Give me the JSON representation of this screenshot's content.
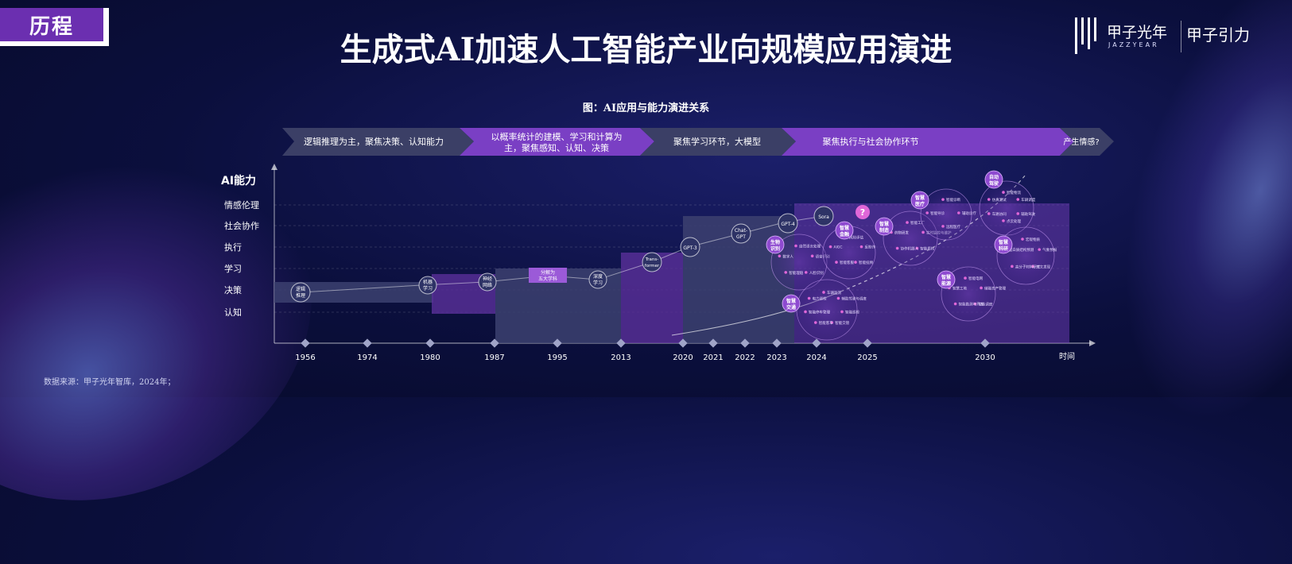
{
  "header": {
    "tag": "历程",
    "title": "生成式AI加速人工智能产业向规模应用演进",
    "logo_cn": "甲子光年",
    "logo_en": "JAZZYEAR",
    "logo_sub": "甲子引力"
  },
  "figure": {
    "caption": "图：AI应用与能力演进关系",
    "y_axis_title": "AI能力",
    "x_axis_title": "时间",
    "source": "数据来源：甲子光年智库，2024年；"
  },
  "phases": [
    {
      "text": "逻辑推理为主，聚焦决策、认知能力"
    },
    {
      "text_line1": "以概率统计的建模、学习和计算为",
      "text_line2": "主，聚焦感知、认知、决策"
    },
    {
      "text": "聚焦学习环节，大模型"
    },
    {
      "text": "聚焦执行与社会协作环节"
    },
    {
      "text": "产生情感?"
    }
  ],
  "ability_levels": [
    "情感伦理",
    "社会协作",
    "执行",
    "学习",
    "决策",
    "认知"
  ],
  "years": [
    "1956",
    "1974",
    "1980",
    "1987",
    "1995",
    "2013",
    "2020",
    "2021",
    "2022",
    "2023",
    "2024",
    "2025",
    "2030"
  ],
  "milestones": [
    {
      "line1": "逻辑",
      "line2": "推理"
    },
    {
      "line1": "机器",
      "line2": "学习"
    },
    {
      "line1": "神经",
      "line2": "网络"
    },
    {
      "line1": "分解为",
      "line2": "五大学科"
    },
    {
      "line1": "深度",
      "line2": "学习"
    },
    {
      "line1": "Trans-",
      "line2": "former"
    },
    {
      "line1": "GPT-3"
    },
    {
      "line1": "Chat-",
      "line2": "GPT"
    },
    {
      "line1": "GPT-4"
    },
    {
      "line1": "Sora"
    },
    {
      "line1": "?"
    }
  ],
  "clusters": [
    {
      "title_line1": "生物",
      "title_line2": "识别",
      "items": [
        "自然语言处理",
        "语音识别",
        "人脸识别",
        "智能理赔",
        "数字人"
      ]
    },
    {
      "title_line1": "智慧",
      "title_line2": "金融",
      "items": [
        "风险评估",
        "反欺诈",
        "智能投顾",
        "智能客服",
        "AIGC"
      ]
    },
    {
      "title_line1": "智慧",
      "title_line2": "制造",
      "items": [
        "智能工厂",
        "实时监控与维护",
        "智能质检",
        "协作机器人",
        "药物研发"
      ]
    },
    {
      "title_line1": "智慧",
      "title_line2": "医疗",
      "items": [
        "智能诊断",
        "辅助诊疗",
        "远程医疗",
        "智能导诊"
      ]
    },
    {
      "title_line1": "自动",
      "title_line2": "驾驶",
      "items": [
        "智能物流",
        "车辆调度",
        "辅助驾驶",
        "点云处理",
        "车路协同",
        "仿真测试"
      ]
    },
    {
      "title_line1": "智慧",
      "title_line2": "科研",
      "items": [
        "宏观物质",
        "气象预报",
        "天文发现",
        "高分子材料研发",
        "蛋白质结构预测"
      ]
    },
    {
      "title_line1": "智慧",
      "title_line2": "能源",
      "items": [
        "智能电网",
        "储能资产管理",
        "智能调度",
        "智能勘测与开发",
        "智慧工地"
      ]
    },
    {
      "title_line1": "智慧",
      "title_line2": "交通",
      "items": [
        "车辆监测",
        "辅助驾驶与调度",
        "智能巡检",
        "智能交管",
        "智能客车",
        "智能停车管理",
        "电力巡检"
      ]
    }
  ],
  "colors": {
    "accent": "#7a3fc4",
    "bar_dark": "#3a3f6e",
    "bubble": "#e067d8",
    "background": "#0b0f3d"
  }
}
